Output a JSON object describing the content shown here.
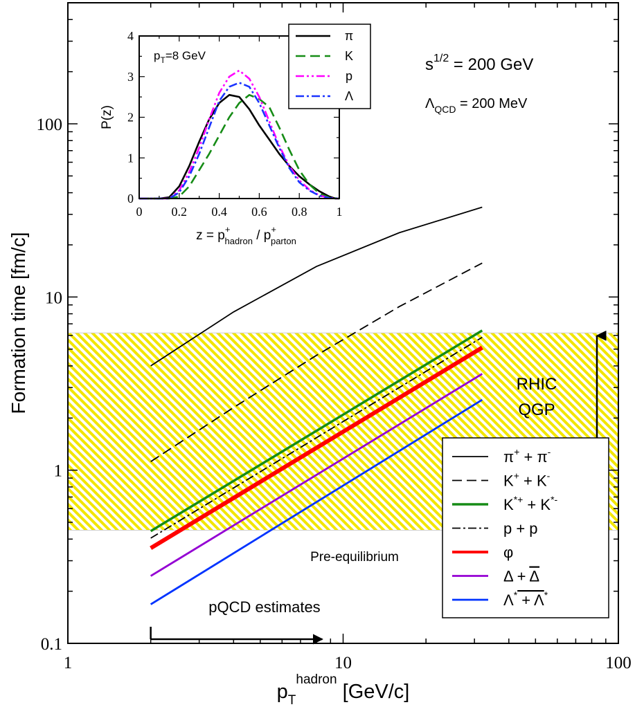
{
  "chart_data": [
    {
      "type": "line",
      "title": "",
      "xlabel": "p",
      "xlabel_sub": "T",
      "xlabel_sup": "hadron",
      "xlabel_unit": " [GeV/c]",
      "ylabel": "Formation time [fm/c]",
      "xscale": "log",
      "yscale": "log",
      "xlim": [
        1,
        100
      ],
      "ylim": [
        0.1,
        500
      ],
      "xticks": [
        {
          "value": 1,
          "label": "1"
        },
        {
          "value": 10,
          "label": "10"
        },
        {
          "value": 100,
          "label": "100"
        }
      ],
      "yticks": [
        {
          "value": 0.1,
          "label": "0.1"
        },
        {
          "value": 1,
          "label": "1"
        },
        {
          "value": 10,
          "label": "10"
        },
        {
          "value": 100,
          "label": "100"
        }
      ],
      "band": {
        "y_range": [
          0.45,
          6.2
        ],
        "color": "#f2e600",
        "label_line1": "RHIC",
        "label_line2": "QGP"
      },
      "annotations": {
        "sqrt_s": {
          "base": "s",
          "sup": "1/2",
          "rest": " = 200 GeV"
        },
        "lambda_qcd": {
          "base": "Λ",
          "sub": "QCD",
          "rest": " = 200 MeV"
        },
        "pre_equilibrium": "Pre-equilibrium",
        "pqcd": "pQCD estimates",
        "pqcd_arrow_x": [
          2,
          8.4
        ]
      },
      "series": [
        {
          "name": "π+ + π-",
          "color": "#000000",
          "width": 1.8,
          "dash": "",
          "x": [
            2,
            4,
            8,
            16,
            32
          ],
          "y": [
            4.0,
            8.2,
            15.0,
            23.5,
            33.0
          ]
        },
        {
          "name": "K+ + K-",
          "color": "#000000",
          "width": 1.8,
          "dash": "14,7",
          "x": [
            2,
            4,
            8,
            16,
            32
          ],
          "y": [
            1.12,
            2.3,
            4.6,
            8.8,
            15.7
          ]
        },
        {
          "name": "K*+ + K*-",
          "color": "#168c16",
          "width": 3.5,
          "dash": "",
          "x": [
            2,
            32
          ],
          "y": [
            0.445,
            6.4
          ]
        },
        {
          "name": "p + p",
          "color": "#000000",
          "width": 1.8,
          "dash": "12,4,3,4",
          "x": [
            2,
            32
          ],
          "y": [
            0.405,
            5.85
          ]
        },
        {
          "name": "φ",
          "color": "#ff0000",
          "width": 6,
          "dash": "",
          "x": [
            2,
            32
          ],
          "y": [
            0.355,
            5.1
          ]
        },
        {
          "name": "Δ + Δ̄",
          "color": "#9400d3",
          "width": 2.8,
          "dash": "",
          "x": [
            2,
            32
          ],
          "y": [
            0.245,
            3.6
          ]
        },
        {
          "name": "Λ* + Λ̄*",
          "color": "#0033ff",
          "width": 2.8,
          "dash": "",
          "x": [
            2,
            32
          ],
          "y": [
            0.168,
            2.55
          ]
        }
      ],
      "legend": {
        "position": "bottom-right",
        "entries": [
          {
            "base": "π",
            "sup1": "+",
            "mid": " + π",
            "sup2": "-",
            "overline": false
          },
          {
            "base": "K",
            "sup1": "+",
            "mid": " + K",
            "sup2": "-",
            "overline": false
          },
          {
            "base": "K",
            "sup1": "*+",
            "mid": " + K",
            "sup2": "*-",
            "overline": false
          },
          {
            "base": "p + p",
            "sup1": "",
            "mid": "",
            "sup2": "",
            "overline": false
          },
          {
            "base": "φ",
            "sup1": "",
            "mid": "",
            "sup2": "",
            "overline": false
          },
          {
            "base": "Δ + ",
            "sup1": "",
            "mid": "Δ",
            "sup2": "",
            "overline": true
          },
          {
            "base": "Λ",
            "sup1": "*",
            "mid": " + Λ",
            "sup2": "*",
            "overline": true
          }
        ]
      }
    },
    {
      "type": "line",
      "title": "p_T=8 GeV",
      "title_base": "p",
      "title_sub": "T",
      "title_rest": "=8 GeV",
      "xlabel": "z = p",
      "xlabel_sup1": "+",
      "xlabel_sub1": "hadron",
      "xlabel_mid": " / p",
      "xlabel_sup2": "+",
      "xlabel_sub2": "parton",
      "ylabel": "P(z)",
      "xlim": [
        0,
        1
      ],
      "ylim": [
        0,
        4
      ],
      "xticks": [
        {
          "value": 0,
          "label": "0"
        },
        {
          "value": 0.2,
          "label": "0.2"
        },
        {
          "value": 0.4,
          "label": "0.4"
        },
        {
          "value": 0.6,
          "label": "0.6"
        },
        {
          "value": 0.8,
          "label": "0.8"
        },
        {
          "value": 1,
          "label": "1"
        }
      ],
      "yticks": [
        {
          "value": 0,
          "label": "0"
        },
        {
          "value": 1,
          "label": "1"
        },
        {
          "value": 2,
          "label": "2"
        },
        {
          "value": 3,
          "label": "3"
        },
        {
          "value": 4,
          "label": "4"
        }
      ],
      "series": [
        {
          "name": "π",
          "color": "#000000",
          "width": 2.6,
          "dash": "",
          "x": [
            0,
            0.1,
            0.15,
            0.2,
            0.25,
            0.3,
            0.35,
            0.4,
            0.45,
            0.5,
            0.55,
            0.6,
            0.65,
            0.7,
            0.75,
            0.8,
            0.85,
            0.9,
            0.95,
            0.98,
            1.0
          ],
          "y": [
            0,
            0,
            0.03,
            0.3,
            0.8,
            1.4,
            1.95,
            2.35,
            2.55,
            2.5,
            2.2,
            1.8,
            1.45,
            1.1,
            0.8,
            0.55,
            0.35,
            0.18,
            0.05,
            0,
            0
          ]
        },
        {
          "name": "K",
          "color": "#168c16",
          "width": 2.6,
          "dash": "14,7",
          "x": [
            0,
            0.15,
            0.2,
            0.25,
            0.3,
            0.35,
            0.4,
            0.45,
            0.5,
            0.55,
            0.6,
            0.65,
            0.7,
            0.75,
            0.8,
            0.85,
            0.9,
            0.95,
            1.0
          ],
          "y": [
            0,
            0,
            0.05,
            0.3,
            0.7,
            1.1,
            1.55,
            2.0,
            2.35,
            2.55,
            2.45,
            2.25,
            1.75,
            1.2,
            0.7,
            0.35,
            0.13,
            0.02,
            0
          ]
        },
        {
          "name": "p",
          "color": "#ff00ff",
          "width": 2.6,
          "dash": "12,4,3,4,3,4",
          "x": [
            0,
            0.15,
            0.2,
            0.25,
            0.3,
            0.35,
            0.4,
            0.45,
            0.5,
            0.55,
            0.6,
            0.65,
            0.7,
            0.75,
            0.8,
            0.85,
            0.9,
            0.95,
            1.0
          ],
          "y": [
            0,
            0,
            0.2,
            0.65,
            1.25,
            1.95,
            2.6,
            3.0,
            3.15,
            2.95,
            2.5,
            1.9,
            1.3,
            0.8,
            0.45,
            0.22,
            0.08,
            0.01,
            0
          ]
        },
        {
          "name": "Λ",
          "color": "#1a33ff",
          "width": 2.6,
          "dash": "12,4,3,4",
          "x": [
            0,
            0.15,
            0.2,
            0.25,
            0.3,
            0.35,
            0.4,
            0.45,
            0.5,
            0.55,
            0.6,
            0.65,
            0.7,
            0.75,
            0.8,
            0.85,
            0.9,
            0.95,
            1.0
          ],
          "y": [
            0,
            0,
            0.15,
            0.55,
            1.1,
            1.75,
            2.4,
            2.75,
            2.85,
            2.75,
            2.35,
            1.8,
            1.25,
            0.75,
            0.4,
            0.2,
            0.07,
            0.01,
            0
          ]
        }
      ],
      "legend": {
        "position": "top-right",
        "entries": [
          "π",
          "K",
          "p",
          "Λ"
        ]
      }
    }
  ]
}
